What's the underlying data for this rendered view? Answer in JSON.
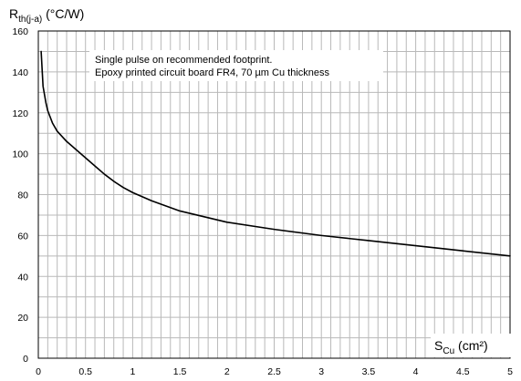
{
  "chart_data": {
    "type": "line",
    "ylabel": {
      "main": "R",
      "sub": "th(j-a)",
      "unit": " (°C/W)"
    },
    "xlabel": {
      "main": "S",
      "sub": "Cu",
      "unit": " (cm²)"
    },
    "xlim": [
      0,
      5
    ],
    "ylim": [
      0,
      160
    ],
    "x_ticks": [
      0,
      0.5,
      1,
      1.5,
      2,
      2.5,
      3,
      3.5,
      4,
      4.5,
      5
    ],
    "y_ticks": [
      0,
      20,
      40,
      60,
      80,
      100,
      120,
      140,
      160
    ],
    "grid": {
      "x_minor_step": 0.1,
      "y_minor_step": 10
    },
    "annotation": [
      "Single pulse on recommended footprint.",
      "Epoxy printed circuit board FR4, 70 µm Cu thickness"
    ],
    "series": [
      {
        "color": "#000000",
        "x": [
          0.03,
          0.05,
          0.08,
          0.1,
          0.15,
          0.2,
          0.3,
          0.4,
          0.5,
          0.6,
          0.7,
          0.8,
          0.9,
          1.0,
          1.2,
          1.5,
          2.0,
          2.5,
          3.0,
          3.5,
          4.0,
          4.5,
          5.0
        ],
        "y": [
          150,
          133,
          125,
          121,
          115,
          111,
          106,
          102,
          98,
          94,
          90,
          86.5,
          83.5,
          81,
          77,
          72,
          66.5,
          63,
          60,
          57.5,
          55,
          52.5,
          50
        ]
      }
    ]
  }
}
